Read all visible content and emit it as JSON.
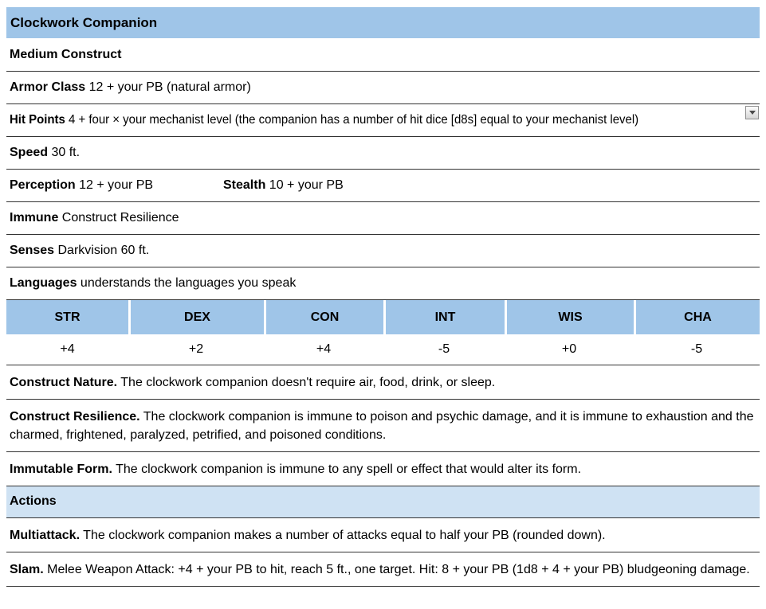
{
  "colors": {
    "header_blue": "#9fc5e8",
    "section_blue": "#cfe2f3",
    "border": "#333333"
  },
  "title": "Clockwork Companion",
  "type_line": "Medium Construct",
  "armor_class": {
    "label": "Armor Class",
    "value": "12 + your PB (natural armor)"
  },
  "hit_points": {
    "label": "Hit Points",
    "value": "4 + four × your mechanist level (the companion has a number of hit dice [d8s] equal to your mechanist level)",
    "dropdown_icon": "chevron-down"
  },
  "speed": {
    "label": "Speed",
    "value": "30 ft."
  },
  "perception": {
    "label": "Perception",
    "value": "12 + your PB"
  },
  "stealth": {
    "label": "Stealth",
    "value": "10 + your PB"
  },
  "immune": {
    "label": "Immune",
    "value": "Construct Resilience"
  },
  "senses": {
    "label": "Senses",
    "value": "Darkvision 60 ft."
  },
  "languages": {
    "label": "Languages",
    "value": "understands the languages you speak"
  },
  "abilities": {
    "headers": [
      "STR",
      "DEX",
      "CON",
      "INT",
      "WIS",
      "CHA"
    ],
    "values": [
      "+4",
      "+2",
      "+4",
      "-5",
      "+0",
      "-5"
    ]
  },
  "traits": [
    {
      "name": "Construct Nature.",
      "text": "The clockwork companion doesn't require air, food, drink, or sleep."
    },
    {
      "name": "Construct Resilience.",
      "text": "The clockwork companion is immune to poison and psychic damage, and it is immune to exhaustion and the charmed, frightened, paralyzed, petrified, and poisoned conditions."
    },
    {
      "name": "Immutable Form.",
      "text": "The clockwork companion is immune to any spell or effect that would alter its form."
    }
  ],
  "actions_section": {
    "header": "Actions",
    "items": [
      {
        "name": "Multiattack.",
        "text": "The clockwork companion makes a number of attacks equal to half your PB (rounded down)."
      },
      {
        "name": "Slam.",
        "text": "Melee Weapon Attack: +4 + your PB to hit, reach 5 ft., one target. Hit: 8 + your PB (1d8 + 4 + your PB) bludgeoning damage."
      }
    ]
  }
}
